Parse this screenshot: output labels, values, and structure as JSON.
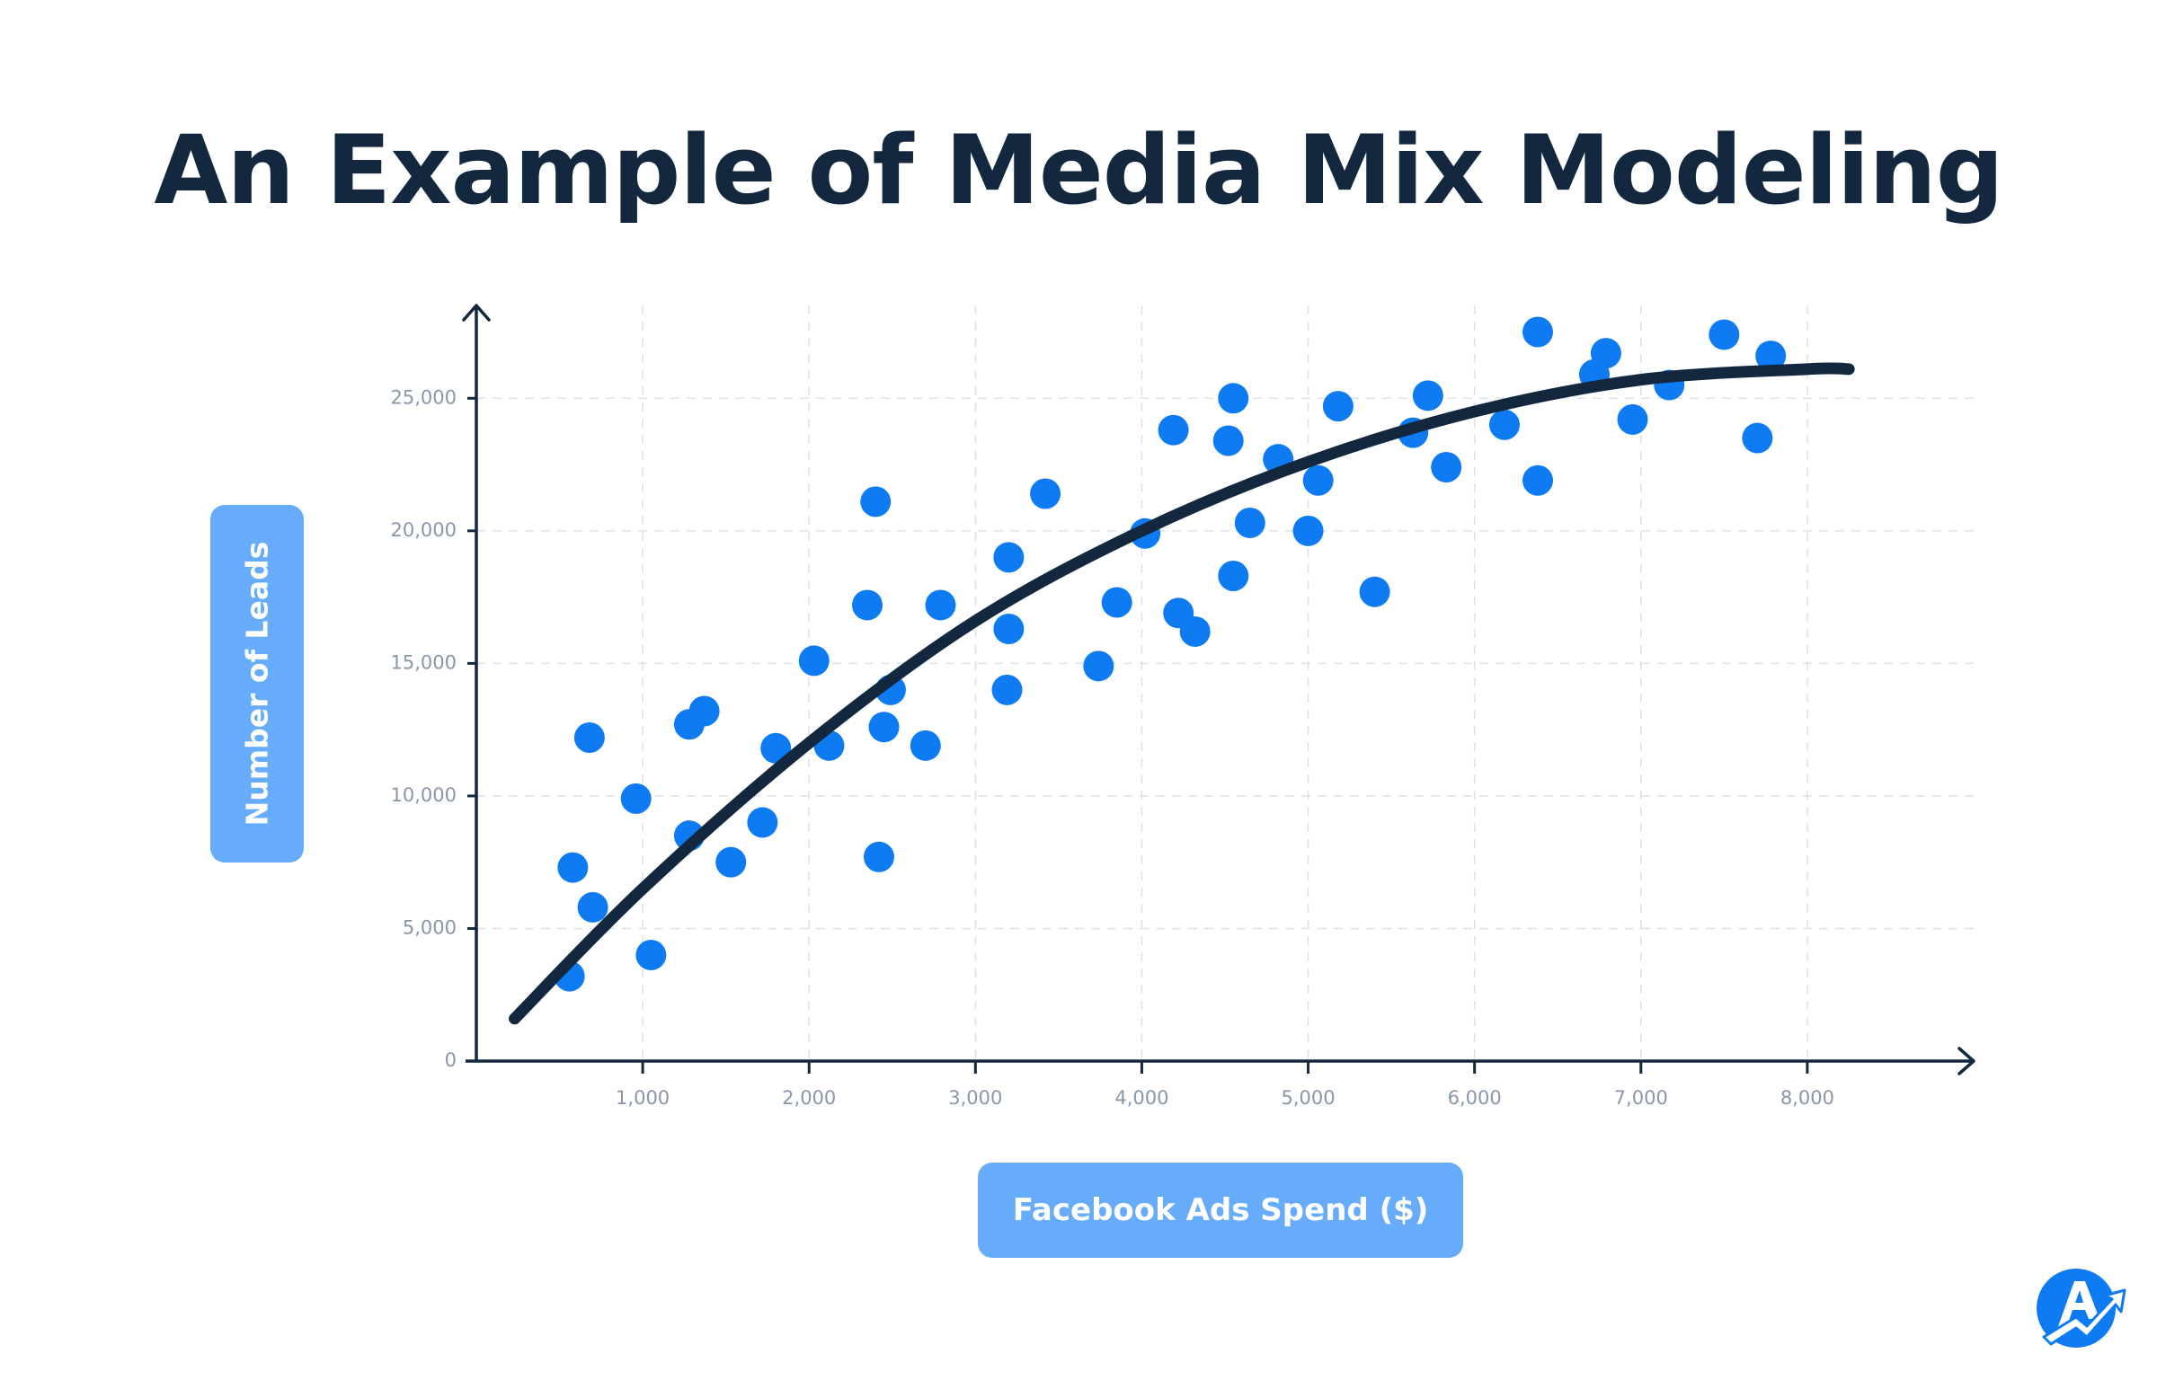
{
  "chart_data": {
    "type": "scatter",
    "title": "An Example of Media Mix Modeling",
    "xlabel": "Facebook Ads Spend ($)",
    "ylabel": "Number of Leads",
    "xlim": [
      0,
      9000
    ],
    "ylim": [
      0,
      28500
    ],
    "x_ticks": [
      1000,
      2000,
      3000,
      4000,
      5000,
      6000,
      7000,
      8000
    ],
    "x_tick_labels": [
      "1,000",
      "2,000",
      "3,000",
      "4,000",
      "5,000",
      "6,000",
      "7,000",
      "8,000"
    ],
    "y_ticks": [
      0,
      5000,
      10000,
      15000,
      20000,
      25000
    ],
    "y_tick_labels": [
      "0",
      "5,000",
      "10,000",
      "15,000",
      "20,000",
      "25,000"
    ],
    "grid": true,
    "legend": "none",
    "colors": {
      "points": "#0f7bf2",
      "trend": "#13283f",
      "axis": "#13283f",
      "grid": "#dde2e8",
      "label_pill": "#66acfa",
      "tick_text": "#8a97a8"
    },
    "points": [
      {
        "x": 560,
        "y": 3200
      },
      {
        "x": 580,
        "y": 7300
      },
      {
        "x": 680,
        "y": 12200
      },
      {
        "x": 700,
        "y": 5800
      },
      {
        "x": 960,
        "y": 9900
      },
      {
        "x": 1050,
        "y": 4000
      },
      {
        "x": 1280,
        "y": 8500
      },
      {
        "x": 1280,
        "y": 12700
      },
      {
        "x": 1370,
        "y": 13200
      },
      {
        "x": 1530,
        "y": 7500
      },
      {
        "x": 1720,
        "y": 9000
      },
      {
        "x": 1800,
        "y": 11800
      },
      {
        "x": 2030,
        "y": 15100
      },
      {
        "x": 2120,
        "y": 11900
      },
      {
        "x": 2350,
        "y": 17200
      },
      {
        "x": 2400,
        "y": 21100
      },
      {
        "x": 2420,
        "y": 7700
      },
      {
        "x": 2450,
        "y": 12600
      },
      {
        "x": 2490,
        "y": 14000
      },
      {
        "x": 2700,
        "y": 11900
      },
      {
        "x": 2790,
        "y": 17200
      },
      {
        "x": 3190,
        "y": 14000
      },
      {
        "x": 3200,
        "y": 16300
      },
      {
        "x": 3200,
        "y": 19000
      },
      {
        "x": 3420,
        "y": 21400
      },
      {
        "x": 3740,
        "y": 14900
      },
      {
        "x": 3850,
        "y": 17300
      },
      {
        "x": 4020,
        "y": 19900
      },
      {
        "x": 4190,
        "y": 23800
      },
      {
        "x": 4220,
        "y": 16900
      },
      {
        "x": 4320,
        "y": 16200
      },
      {
        "x": 4520,
        "y": 23400
      },
      {
        "x": 4550,
        "y": 25000
      },
      {
        "x": 4550,
        "y": 18300
      },
      {
        "x": 4650,
        "y": 20300
      },
      {
        "x": 4820,
        "y": 22700
      },
      {
        "x": 5000,
        "y": 20000
      },
      {
        "x": 5060,
        "y": 21900
      },
      {
        "x": 5180,
        "y": 24700
      },
      {
        "x": 5400,
        "y": 17700
      },
      {
        "x": 5630,
        "y": 23700
      },
      {
        "x": 5720,
        "y": 25100
      },
      {
        "x": 5830,
        "y": 22400
      },
      {
        "x": 6180,
        "y": 24000
      },
      {
        "x": 6380,
        "y": 21900
      },
      {
        "x": 6380,
        "y": 27500
      },
      {
        "x": 6720,
        "y": 25900
      },
      {
        "x": 6790,
        "y": 26700
      },
      {
        "x": 6950,
        "y": 24200
      },
      {
        "x": 7170,
        "y": 25500
      },
      {
        "x": 7500,
        "y": 27400
      },
      {
        "x": 7700,
        "y": 23500
      },
      {
        "x": 7780,
        "y": 26600
      }
    ],
    "trend": [
      {
        "x": 230,
        "y": 1600
      },
      {
        "x": 1000,
        "y": 6500
      },
      {
        "x": 2000,
        "y": 12000
      },
      {
        "x": 3000,
        "y": 16600
      },
      {
        "x": 4000,
        "y": 20000
      },
      {
        "x": 5000,
        "y": 22600
      },
      {
        "x": 6000,
        "y": 24500
      },
      {
        "x": 7000,
        "y": 25700
      },
      {
        "x": 8000,
        "y": 26100
      },
      {
        "x": 8250,
        "y": 26100
      }
    ]
  }
}
